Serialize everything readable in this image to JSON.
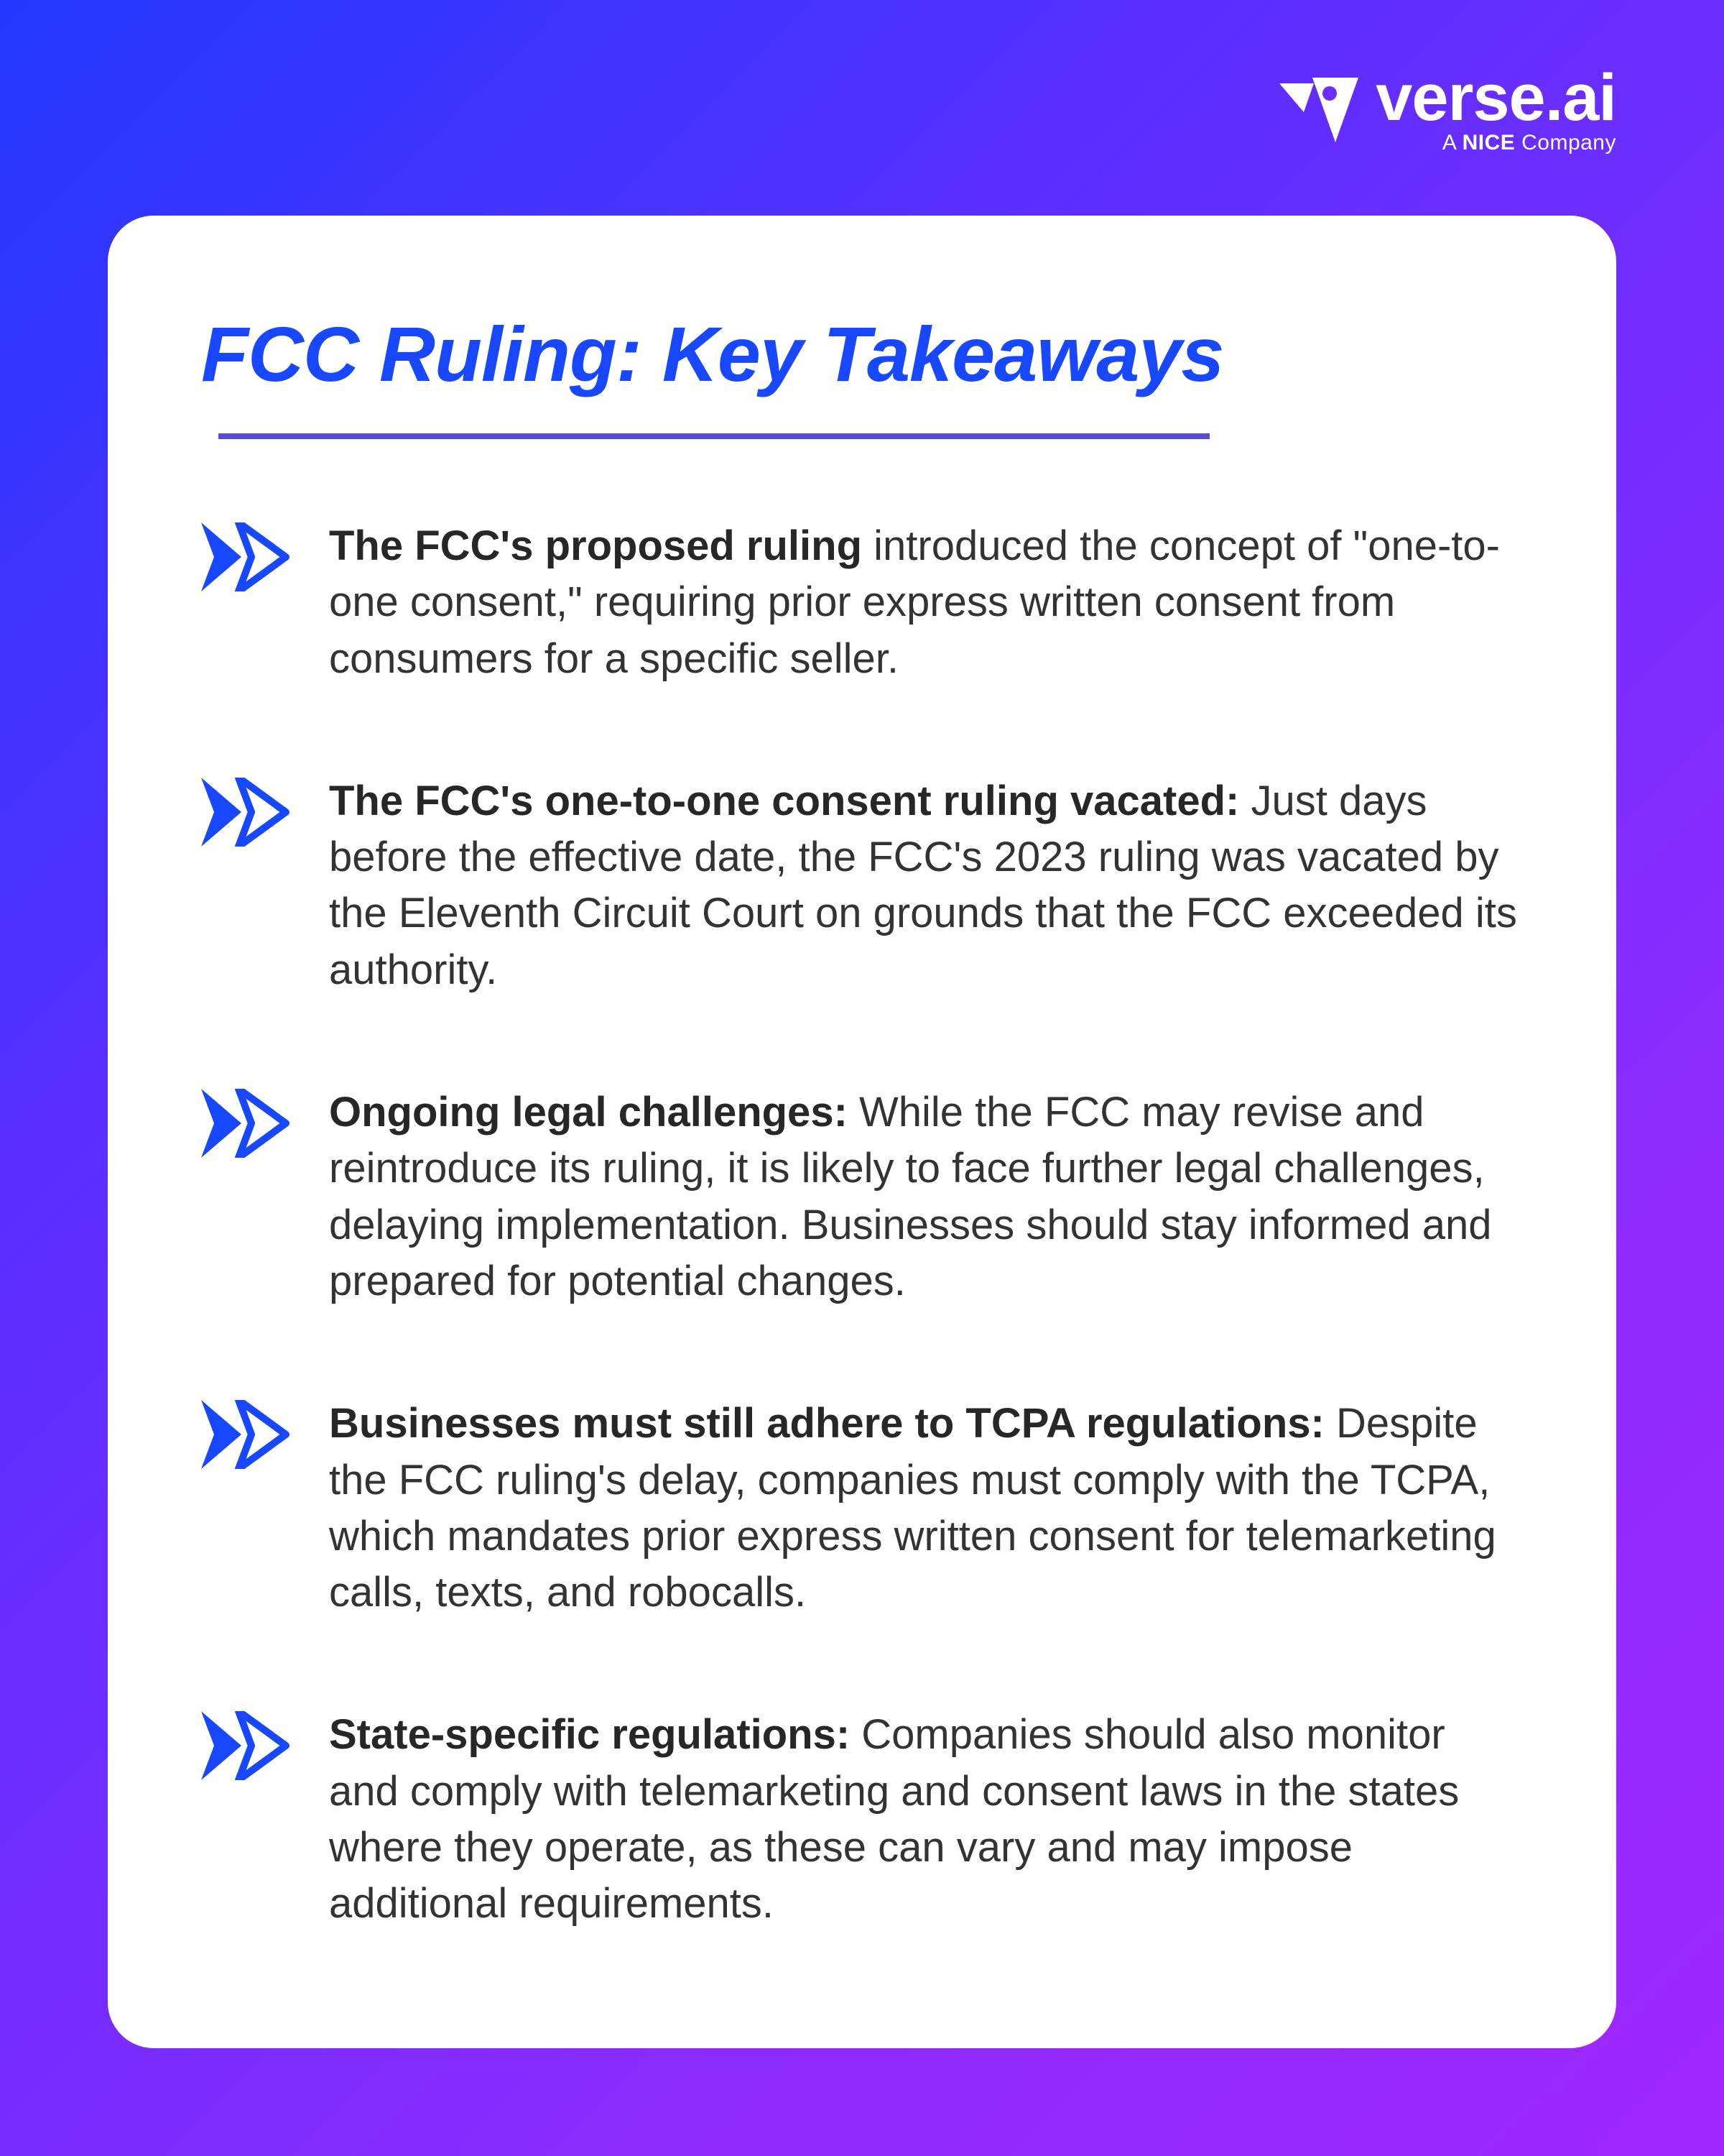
{
  "colors": {
    "accent_blue": "#1748ff",
    "divider": "#5a4bd6",
    "body_text": "#333333",
    "bold_text": "#272727",
    "white": "#ffffff",
    "gradient_start": "#2238ff",
    "gradient_end": "#a028ff"
  },
  "logo": {
    "main": "verse.ai",
    "sub_prefix": "A ",
    "sub_bold": "NICE",
    "sub_suffix": " Company"
  },
  "card": {
    "title": "FCC Ruling: Key Takeaways",
    "title_fontsize": 108,
    "divider_width": 1380,
    "divider_height": 8,
    "items": [
      {
        "bold": "The FCC's proposed ruling",
        "rest": " introduced the concept of \"one-to-one consent,\" requiring prior express written consent from consumers for a specific seller."
      },
      {
        "bold": "The FCC's one-to-one consent ruling vacated:",
        "rest": " Just days before the effective date, the FCC's 2023 ruling was vacated by the Eleventh Circuit Court on grounds that the FCC exceeded its authority."
      },
      {
        "bold": "Ongoing legal challenges:",
        "rest": " While the FCC may revise and reintroduce its ruling, it is likely to face further legal challenges, delaying implementation. Businesses should stay informed and prepared for potential changes."
      },
      {
        "bold": "Businesses must still adhere to TCPA regulations:",
        "rest": " Despite the FCC ruling's delay, companies must comply with the TCPA, which mandates prior express written consent for telemarketing calls, texts, and robocalls."
      },
      {
        "bold": "State-specific regulations:",
        "rest": " Companies should also monitor and comply with telemarketing and consent laws in the states where they operate, as these can vary and may impose additional requirements."
      }
    ],
    "item_fontsize": 58,
    "item_lineheight": 1.35,
    "item_gap": 120,
    "border_radius": 64
  }
}
